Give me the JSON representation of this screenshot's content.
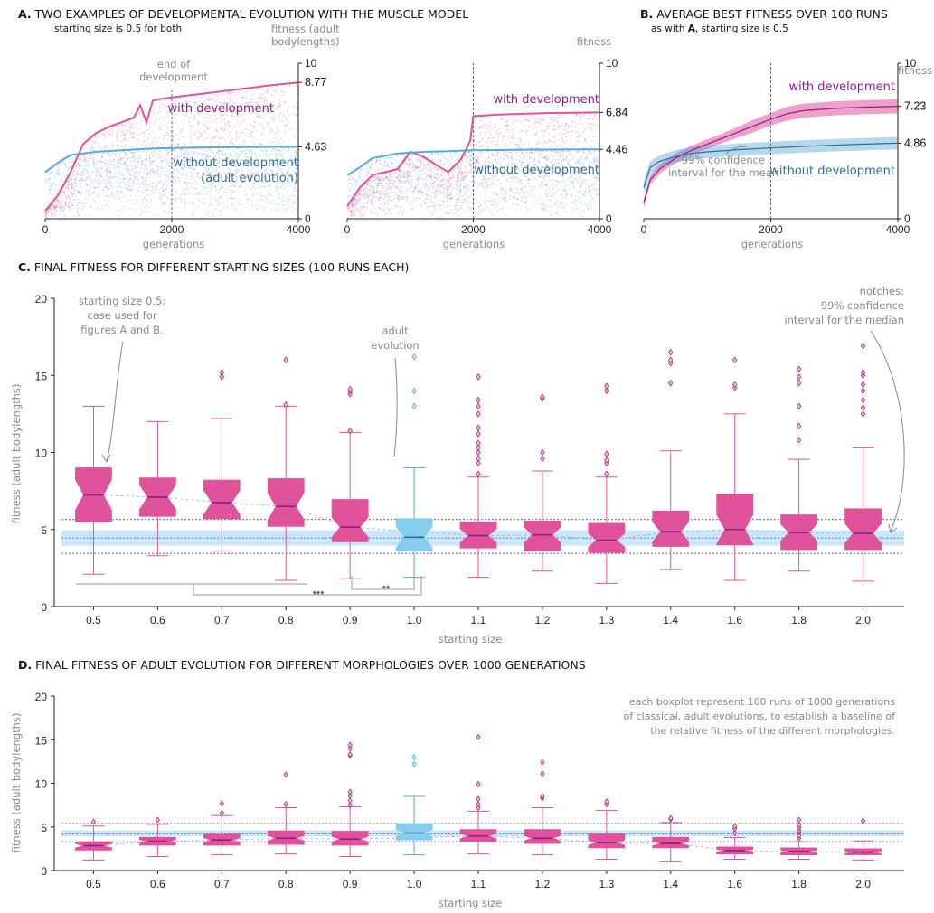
{
  "colors": {
    "dev": "#e0529a",
    "dev_dark": "#8a1e8a",
    "nodev": "#5aa9d6",
    "nodev_box": "#86ccef",
    "nodev_dark": "#2e6d96",
    "band": "#cbe7f7",
    "ref_line": "#3b59a6"
  },
  "panelA": {
    "title_bold": "A.",
    "title_rest": "TWO EXAMPLES OF DEVELOPMENTAL EVOLUTION WITH THE MUSCLE MODEL",
    "subtitle": "starting size is 0.5 for both",
    "ylabel1_line1": "fitness (adult",
    "ylabel1_line2": "bodylengths)",
    "ylabel2": "fitness",
    "annotation_line1": "end of",
    "annotation_line2": "development",
    "xlabel": "generations",
    "label_dev": "with development",
    "label_nodev_line1": "without development",
    "label_nodev_line2": "(adult evolution)",
    "label_nodev2": "without development"
  },
  "panelB": {
    "title_bold": "B.",
    "title_rest": "AVERAGE BEST FITNESS OVER 100 RUNS",
    "subtitle_pre": "as with ",
    "subtitle_bold": "A",
    "subtitle_post": ", starting size is 0.5",
    "ylabel": "fitness",
    "xlabel": "generations",
    "label_dev": "with development",
    "label_nodev": "without development",
    "ci_line1": "99% confidence",
    "ci_line2": "interval for the mean"
  },
  "panelC": {
    "title_bold": "C.",
    "title_rest": "FINAL FITNESS FOR DIFFERENT STARTING SIZES (100 RUNS EACH)",
    "ylabel": "fitness (adult bodylengths)",
    "xlabel": "starting size",
    "note_left_1": "starting size 0.5:",
    "note_left_2": "case used for",
    "note_left_3": "figures A and B.",
    "note_mid_1": "adult",
    "note_mid_2": "evolution",
    "note_right_1": "notches:",
    "note_right_2": "99% confidence",
    "note_right_3": "interval for the median",
    "sig1": "**",
    "sig2": "***"
  },
  "panelD": {
    "title_bold": "D.",
    "title_rest": "FINAL FITNESS OF ADULT EVOLUTION FOR DIFFERENT MORPHOLOGIES OVER 1000 GENERATIONS",
    "ylabel": "fitness (adult bodylengths)",
    "xlabel": "starting size",
    "note_1": "each boxplot represent 100 runs of 1000 generations",
    "note_2": "of classical, adult evolutions, to establish a baseline of",
    "note_3": "the relative fitness of the different morphologies."
  },
  "chart_data": [
    {
      "type": "line",
      "panel": "A-left",
      "x_range": [
        0,
        4000
      ],
      "y_range": [
        0,
        10
      ],
      "x_ticks": [
        "0",
        "2000",
        "4000"
      ],
      "y_ticks": [
        "0",
        "10"
      ],
      "end_of_development": 2000,
      "series": [
        {
          "name": "with development",
          "x": [
            0,
            200,
            400,
            600,
            800,
            1000,
            1200,
            1400,
            1500,
            1600,
            1700,
            1800,
            2000,
            2400,
            2800,
            3200,
            3600,
            4000
          ],
          "y": [
            0.5,
            1.5,
            3.0,
            4.8,
            5.5,
            5.9,
            6.2,
            6.5,
            7.3,
            6.2,
            7.6,
            7.7,
            7.8,
            8.0,
            8.2,
            8.4,
            8.6,
            8.77
          ],
          "end_value": "8.77"
        },
        {
          "name": "without development (adult evolution)",
          "x": [
            0,
            200,
            400,
            800,
            1200,
            1600,
            2000,
            2400,
            2800,
            3200,
            3600,
            4000
          ],
          "y": [
            3.0,
            3.6,
            4.1,
            4.3,
            4.4,
            4.5,
            4.55,
            4.58,
            4.6,
            4.61,
            4.62,
            4.63
          ],
          "end_value": "4.63"
        }
      ]
    },
    {
      "type": "line",
      "panel": "A-right",
      "x_range": [
        0,
        4000
      ],
      "y_range": [
        0,
        10
      ],
      "x_ticks": [
        "0",
        "2000",
        "4000"
      ],
      "y_ticks": [
        "0",
        "10"
      ],
      "end_of_development": 2000,
      "series": [
        {
          "name": "with development",
          "x": [
            0,
            200,
            400,
            600,
            800,
            1000,
            1200,
            1400,
            1600,
            1800,
            1950,
            2000,
            2400,
            2800,
            3200,
            3600,
            4000
          ],
          "y": [
            0.8,
            2.0,
            2.8,
            3.0,
            3.2,
            4.3,
            4.0,
            3.5,
            3.0,
            3.8,
            5.0,
            6.6,
            6.7,
            6.75,
            6.8,
            6.82,
            6.84
          ],
          "end_value": "6.84"
        },
        {
          "name": "without development",
          "x": [
            0,
            200,
            400,
            800,
            1200,
            1600,
            2000,
            2400,
            2800,
            3200,
            3600,
            4000
          ],
          "y": [
            2.8,
            3.3,
            3.9,
            4.2,
            4.3,
            4.35,
            4.4,
            4.42,
            4.44,
            4.45,
            4.46,
            4.46
          ],
          "end_value": "4.46"
        }
      ]
    },
    {
      "type": "line",
      "panel": "B",
      "x_range": [
        0,
        4000
      ],
      "y_range": [
        0,
        10
      ],
      "x_ticks": [
        "0",
        "2000",
        "4000"
      ],
      "y_ticks": [
        "0",
        "10"
      ],
      "end_of_development": 2000,
      "series": [
        {
          "name": "with development",
          "x": [
            0,
            100,
            250,
            500,
            750,
            1000,
            1250,
            1500,
            1750,
            2000,
            2250,
            2500,
            3000,
            3500,
            4000
          ],
          "y": [
            1.0,
            2.5,
            3.2,
            3.9,
            4.4,
            4.8,
            5.2,
            5.6,
            6.0,
            6.4,
            6.75,
            6.95,
            7.1,
            7.18,
            7.23
          ],
          "ci": [
            0.3,
            0.3,
            0.3,
            0.3,
            0.3,
            0.3,
            0.3,
            0.35,
            0.4,
            0.4,
            0.45,
            0.45,
            0.45,
            0.45,
            0.45
          ],
          "end_value": "7.23"
        },
        {
          "name": "without development",
          "x": [
            0,
            100,
            250,
            500,
            750,
            1000,
            1500,
            2000,
            2500,
            3000,
            3500,
            4000
          ],
          "y": [
            2.0,
            3.3,
            3.7,
            4.0,
            4.2,
            4.3,
            4.45,
            4.55,
            4.65,
            4.73,
            4.8,
            4.86
          ],
          "ci": [
            0.4,
            0.4,
            0.4,
            0.4,
            0.4,
            0.4,
            0.4,
            0.4,
            0.4,
            0.4,
            0.4,
            0.4
          ],
          "end_value": "4.86"
        }
      ]
    },
    {
      "type": "box",
      "panel": "C",
      "y_range": [
        0,
        20
      ],
      "y_ticks": [
        "0",
        "5",
        "10",
        "15",
        "20"
      ],
      "categories": [
        "0.5",
        "0.6",
        "0.7",
        "0.8",
        "0.9",
        "1.0",
        "1.1",
        "1.2",
        "1.3",
        "1.4",
        "1.6",
        "1.8",
        "2.0"
      ],
      "adult_category": "1.0",
      "reference_lines": [
        5.65,
        4.45,
        3.45
      ],
      "band": [
        3.95,
        4.95
      ],
      "boxes": [
        {
          "whislo": 2.1,
          "q1": 5.5,
          "med": 7.25,
          "q3": 9.0,
          "whishi": 13.0,
          "notch": 1.0,
          "fliers": []
        },
        {
          "whislo": 3.3,
          "q1": 5.85,
          "med": 7.1,
          "q3": 8.35,
          "whishi": 12.0,
          "notch": 0.8,
          "fliers": []
        },
        {
          "whislo": 3.6,
          "q1": 5.7,
          "med": 6.75,
          "q3": 8.2,
          "whishi": 12.2,
          "notch": 0.8,
          "fliers": [
            14.9,
            15.2
          ]
        },
        {
          "whislo": 1.7,
          "q1": 5.2,
          "med": 6.5,
          "q3": 8.3,
          "whishi": 13.0,
          "notch": 0.9,
          "fliers": [
            13.1,
            16.0
          ]
        },
        {
          "whislo": 1.8,
          "q1": 4.2,
          "med": 5.15,
          "q3": 6.95,
          "whishi": 11.3,
          "notch": 0.65,
          "fliers": [
            11.4,
            13.8,
            14.0,
            14.1
          ]
        },
        {
          "whislo": 1.9,
          "q1": 3.6,
          "med": 4.5,
          "q3": 5.7,
          "whishi": 9.0,
          "notch": 0.7,
          "fliers": [
            13.0,
            14.0,
            16.2
          ]
        },
        {
          "whislo": 1.9,
          "q1": 3.8,
          "med": 4.6,
          "q3": 5.5,
          "whishi": 8.4,
          "notch": 0.45,
          "fliers": [
            8.6,
            9.3,
            9.6,
            10.0,
            10.3,
            10.6,
            11.2,
            11.6,
            12.5,
            13.0,
            13.4,
            14.9
          ]
        },
        {
          "whislo": 2.3,
          "q1": 3.6,
          "med": 4.65,
          "q3": 5.55,
          "whishi": 8.8,
          "notch": 0.5,
          "fliers": [
            9.6,
            10.0,
            13.5,
            13.6
          ]
        },
        {
          "whislo": 1.5,
          "q1": 3.5,
          "med": 4.3,
          "q3": 5.4,
          "whishi": 8.4,
          "notch": 0.45,
          "fliers": [
            8.6,
            9.3,
            9.5,
            9.9,
            14.0,
            14.3
          ]
        },
        {
          "whislo": 2.4,
          "q1": 3.9,
          "med": 4.85,
          "q3": 6.2,
          "whishi": 10.1,
          "notch": 0.65,
          "fliers": [
            14.5,
            15.8,
            16.0,
            16.5
          ]
        },
        {
          "whislo": 1.7,
          "q1": 4.0,
          "med": 5.0,
          "q3": 7.3,
          "whishi": 12.5,
          "notch": 0.95,
          "fliers": [
            14.2,
            14.4,
            16.0
          ]
        },
        {
          "whislo": 2.3,
          "q1": 3.7,
          "med": 4.8,
          "q3": 5.95,
          "whishi": 9.55,
          "notch": 0.55,
          "fliers": [
            10.8,
            11.7,
            13.0,
            14.5,
            14.9,
            15.4
          ]
        },
        {
          "whislo": 1.65,
          "q1": 3.7,
          "med": 4.75,
          "q3": 6.35,
          "whishi": 10.3,
          "notch": 0.65,
          "fliers": [
            12.5,
            12.9,
            13.4,
            14.0,
            14.4,
            15.0,
            15.2,
            16.9
          ]
        }
      ]
    },
    {
      "type": "box",
      "panel": "D",
      "y_range": [
        0,
        20
      ],
      "y_ticks": [
        "0",
        "5",
        "10",
        "15",
        "20"
      ],
      "categories": [
        "0.5",
        "0.6",
        "0.7",
        "0.8",
        "0.9",
        "1.0",
        "1.1",
        "1.2",
        "1.3",
        "1.4",
        "1.6",
        "1.8",
        "2.0"
      ],
      "adult_category": "1.0",
      "reference_lines": [
        5.4,
        4.2,
        3.3
      ],
      "band": [
        3.9,
        4.6
      ],
      "boxes": [
        {
          "whislo": 1.2,
          "q1": 2.35,
          "med": 2.85,
          "q3": 3.3,
          "whishi": 5.1,
          "notch": 0.25,
          "fliers": [
            5.6
          ]
        },
        {
          "whislo": 1.6,
          "q1": 2.9,
          "med": 3.35,
          "q3": 3.8,
          "whishi": 5.3,
          "notch": 0.2,
          "fliers": [
            5.8
          ]
        },
        {
          "whislo": 1.8,
          "q1": 2.9,
          "med": 3.5,
          "q3": 4.15,
          "whishi": 6.3,
          "notch": 0.25,
          "fliers": [
            6.6,
            7.7
          ]
        },
        {
          "whislo": 1.9,
          "q1": 3.0,
          "med": 3.7,
          "q3": 4.55,
          "whishi": 7.2,
          "notch": 0.3,
          "fliers": [
            7.6,
            11.0
          ]
        },
        {
          "whislo": 1.6,
          "q1": 2.9,
          "med": 3.6,
          "q3": 4.5,
          "whishi": 7.3,
          "notch": 0.3,
          "fliers": [
            7.5,
            8.0,
            8.6,
            9.0,
            13.2,
            13.3,
            14.0,
            14.4
          ]
        },
        {
          "whislo": 1.8,
          "q1": 3.5,
          "med": 4.3,
          "q3": 5.4,
          "whishi": 8.5,
          "notch": 0.4,
          "fliers": [
            12.2,
            13.0
          ]
        },
        {
          "whislo": 1.9,
          "q1": 3.3,
          "med": 3.95,
          "q3": 4.7,
          "whishi": 6.8,
          "notch": 0.3,
          "fliers": [
            7.2,
            7.6,
            8.2,
            9.9,
            15.3
          ]
        },
        {
          "whislo": 1.8,
          "q1": 3.1,
          "med": 3.7,
          "q3": 4.7,
          "whishi": 7.2,
          "notch": 0.3,
          "fliers": [
            8.3,
            8.5,
            11.1,
            12.4
          ]
        },
        {
          "whislo": 1.3,
          "q1": 2.6,
          "med": 3.2,
          "q3": 4.2,
          "whishi": 6.9,
          "notch": 0.3,
          "fliers": [
            7.6,
            7.9
          ]
        },
        {
          "whislo": 1.0,
          "q1": 2.6,
          "med": 3.1,
          "q3": 3.8,
          "whishi": 5.5,
          "notch": 0.25,
          "fliers": [
            5.9,
            6.0
          ]
        },
        {
          "whislo": 1.3,
          "q1": 1.9,
          "med": 2.3,
          "q3": 2.7,
          "whishi": 3.8,
          "notch": 0.15,
          "fliers": [
            4.3,
            4.8,
            5.1
          ]
        },
        {
          "whislo": 1.3,
          "q1": 1.8,
          "med": 2.2,
          "q3": 2.6,
          "whishi": 3.3,
          "notch": 0.15,
          "fliers": [
            3.7,
            4.0,
            4.4,
            4.6,
            4.9,
            5.2,
            5.8
          ]
        },
        {
          "whislo": 1.2,
          "q1": 1.8,
          "med": 2.1,
          "q3": 2.5,
          "whishi": 3.4,
          "notch": 0.15,
          "fliers": [
            5.7
          ]
        }
      ]
    }
  ]
}
